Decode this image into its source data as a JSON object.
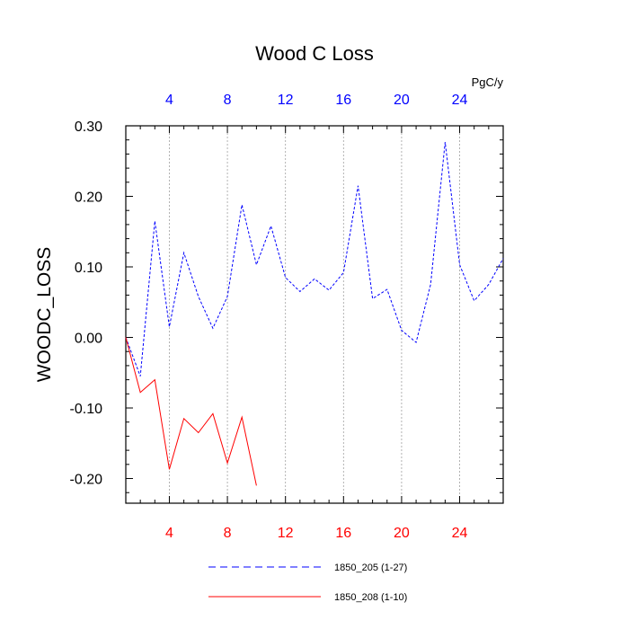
{
  "chart_data": {
    "type": "line",
    "title": "Wood C Loss",
    "ylabel": "WOODC_LOSS",
    "units": "PgC/y",
    "xlim": [
      1,
      27
    ],
    "ylim": [
      -0.235,
      0.3
    ],
    "x_ticks": [
      4,
      8,
      12,
      16,
      20,
      24
    ],
    "x_tick_labels": [
      "4",
      "8",
      "12",
      "16",
      "20",
      "24"
    ],
    "y_ticks": [
      -0.2,
      -0.1,
      0.0,
      0.1,
      0.2,
      0.3
    ],
    "y_tick_labels": [
      "-0.20",
      "-0.10",
      "0.00",
      "0.10",
      "0.20",
      "0.30"
    ],
    "top_axis_color": "#0000ff",
    "bottom_axis_color": "#ff0000",
    "grid": "vertical dotted",
    "series": [
      {
        "name": "1850_205 (1-27)",
        "color": "#0000ff",
        "style": "dashed",
        "x": [
          1,
          2,
          3,
          4,
          5,
          6,
          7,
          8,
          9,
          10,
          11,
          12,
          13,
          14,
          15,
          16,
          17,
          18,
          19,
          20,
          21,
          22,
          23,
          24,
          25,
          26,
          27
        ],
        "values": [
          0.0,
          -0.055,
          0.165,
          0.015,
          0.12,
          0.058,
          0.013,
          0.058,
          0.188,
          0.103,
          0.158,
          0.085,
          0.065,
          0.083,
          0.067,
          0.092,
          0.215,
          0.055,
          0.068,
          0.01,
          -0.007,
          0.075,
          0.277,
          0.103,
          0.052,
          0.075,
          0.112
        ]
      },
      {
        "name": "1850_208 (1-10)",
        "color": "#ff0000",
        "style": "solid",
        "x": [
          1,
          2,
          3,
          4,
          5,
          6,
          7,
          8,
          9,
          10
        ],
        "values": [
          0.0,
          -0.078,
          -0.06,
          -0.187,
          -0.115,
          -0.135,
          -0.108,
          -0.178,
          -0.113,
          -0.21
        ]
      }
    ]
  }
}
